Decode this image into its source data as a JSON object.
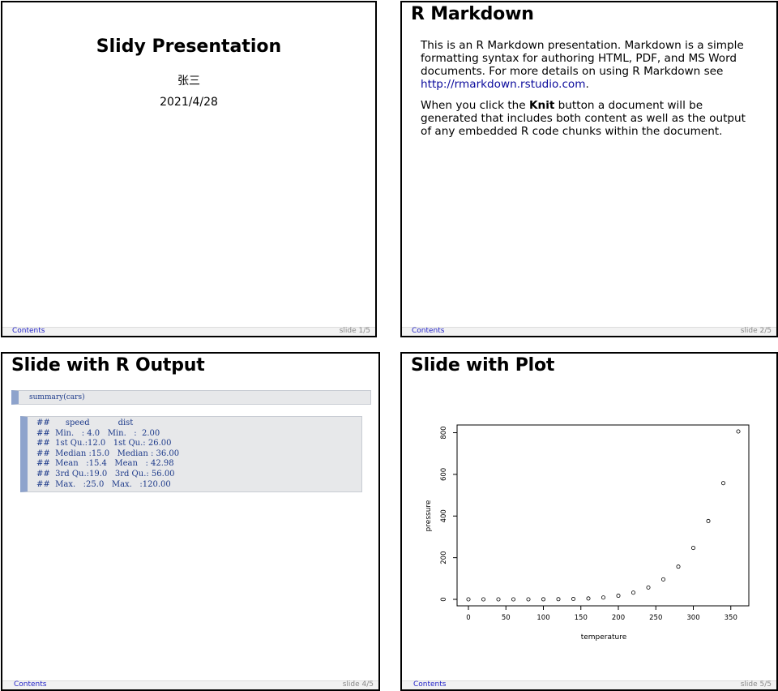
{
  "slides": [
    {
      "title": "Slidy Presentation",
      "author": "张三",
      "date": "2021/4/28",
      "footer_toc": "Contents",
      "footer_num": "slide 1/5"
    },
    {
      "title": "R Markdown",
      "para1_text": "This is an R Markdown presentation. Markdown is a simple formatting syntax for authoring HTML, PDF, and MS Word documents. For more details on using R Markdown see ",
      "para1_link": "http://rmarkdown.rstudio.com",
      "para1_end": ".",
      "para2_before": "When you click the ",
      "para2_bold": "Knit",
      "para2_after": " button a document will be generated that includes both content as well as the output of any embedded R code chunks within the document.",
      "footer_toc": "Contents",
      "footer_num": "slide 2/5"
    },
    {
      "title": "Slide with R Output",
      "code": "summary(cars)",
      "output": "##      speed           dist       \n##  Min.   : 4.0   Min.   :  2.00  \n##  1st Qu.:12.0   1st Qu.: 26.00  \n##  Median :15.0   Median : 36.00  \n##  Mean   :15.4   Mean   : 42.98  \n##  3rd Qu.:19.0   3rd Qu.: 56.00  \n##  Max.   :25.0   Max.   :120.00  ",
      "footer_toc": "Contents",
      "footer_num": "slide 4/5"
    },
    {
      "title": "Slide with Plot",
      "footer_toc": "Contents",
      "footer_num": "slide 5/5"
    }
  ],
  "chart_data": {
    "type": "scatter",
    "xlabel": "temperature",
    "ylabel": "pressure",
    "xlim": [
      0,
      360
    ],
    "ylim": [
      0,
      806.0
    ],
    "xticks": [
      0,
      50,
      100,
      150,
      200,
      250,
      300,
      350
    ],
    "yticks": [
      0,
      200,
      400,
      600,
      800
    ],
    "grid": false,
    "x": [
      0,
      20,
      40,
      60,
      80,
      100,
      120,
      140,
      160,
      180,
      200,
      220,
      240,
      260,
      280,
      300,
      320,
      340,
      360
    ],
    "y": [
      0.0002,
      0.0012,
      0.006,
      0.03,
      0.09,
      0.27,
      0.75,
      1.85,
      4.2,
      8.8,
      17.3,
      32.1,
      57.0,
      96.0,
      157.0,
      247.0,
      376.0,
      558.0,
      806.0
    ]
  }
}
